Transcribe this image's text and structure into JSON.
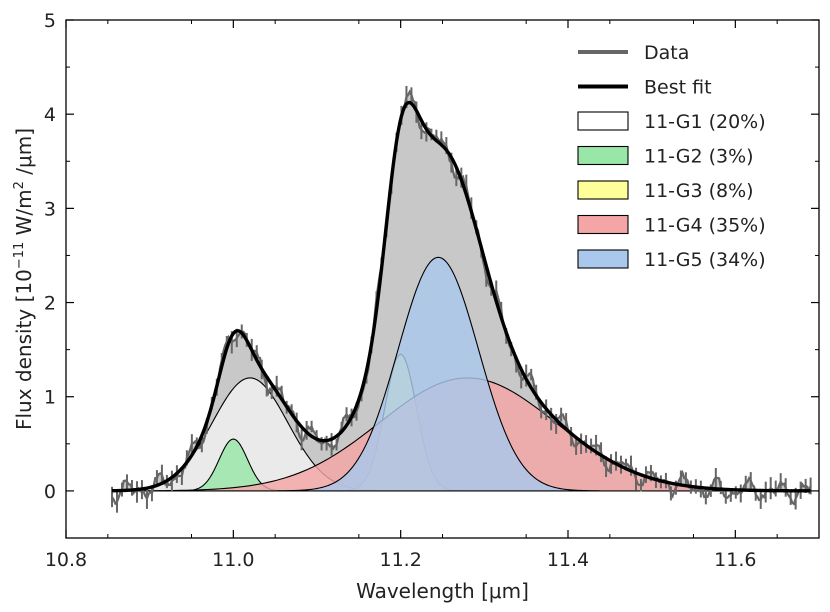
{
  "chart_data": {
    "type": "line",
    "title": "",
    "xlabel": "Wavelength [μm]",
    "ylabel": "Flux density [10^-11 W/m^2 /μm]",
    "ylabel_parts": {
      "prefix": "Flux density [10",
      "exp": "−11",
      "mid": " W/m",
      "exp2": "2",
      "suffix": " /μm]"
    },
    "xlim": [
      10.8,
      11.7
    ],
    "ylim": [
      -0.5,
      5
    ],
    "xticks": [
      10.8,
      11.0,
      11.2,
      11.4,
      11.6
    ],
    "xtick_labels": [
      "10.8",
      "11.0",
      "11.2",
      "11.4",
      "11.6"
    ],
    "yticks": [
      0,
      1,
      2,
      3,
      4,
      5
    ],
    "ytick_labels": [
      "0",
      "1",
      "2",
      "3",
      "4",
      "5"
    ],
    "x_range": [
      10.855,
      11.69
    ],
    "components": [
      {
        "name": "11-G1 (20%)",
        "center": 11.02,
        "amplitude": 1.2,
        "sigma": 0.045,
        "fill": "#f2f2f2",
        "legend_fill": "#ffffff"
      },
      {
        "name": "11-G2 (3%)",
        "center": 11.0,
        "amplitude": 0.55,
        "sigma": 0.017,
        "fill": "#98e6a8",
        "legend_fill": "#98e6a8"
      },
      {
        "name": "11-G3 (8%)",
        "center": 11.2,
        "amplitude": 1.45,
        "sigma": 0.019,
        "fill": "#ffff99",
        "legend_fill": "#ffff99"
      },
      {
        "name": "11-G4 (35%)",
        "center": 11.28,
        "amplitude": 1.2,
        "sigma": 0.105,
        "fill": "#f4a6a6",
        "legend_fill": "#f4a6a6"
      },
      {
        "name": "11-G5 (34%)",
        "center": 11.245,
        "amplitude": 2.48,
        "sigma": 0.048,
        "fill": "#a9c8ec",
        "legend_fill": "#a9c8ec"
      }
    ],
    "legend": {
      "placement": "top-right",
      "entries": [
        {
          "label": "Data",
          "kind": "line",
          "color": "#666666"
        },
        {
          "label": "Best fit",
          "kind": "line",
          "color": "#000000"
        },
        {
          "label": "11-G1 (20%)",
          "kind": "patch",
          "color": "#ffffff"
        },
        {
          "label": "11-G2 (3%)",
          "kind": "patch",
          "color": "#98e6a8"
        },
        {
          "label": "11-G3 (8%)",
          "kind": "patch",
          "color": "#ffff99"
        },
        {
          "label": "11-G4 (35%)",
          "kind": "patch",
          "color": "#f4a6a6"
        },
        {
          "label": "11-G5 (34%)",
          "kind": "patch",
          "color": "#a9c8ec"
        }
      ]
    },
    "series": [
      {
        "name": "Data",
        "color": "#666666",
        "errorbars": true
      },
      {
        "name": "Best fit",
        "color": "#000000"
      }
    ],
    "data_fill_color": "#c8c8c8"
  }
}
